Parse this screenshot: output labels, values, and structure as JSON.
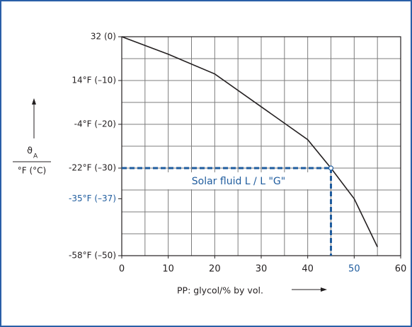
{
  "chart_data": {
    "type": "line",
    "x": [
      0,
      10,
      20,
      30,
      40,
      45,
      50,
      55
    ],
    "series": [
      {
        "color": "#231f20",
        "values": [
          0,
          -4,
          -8.5,
          -16,
          -23.5,
          -30,
          -37,
          -48
        ]
      }
    ],
    "xlim": [
      0,
      60
    ],
    "ylim": [
      -50,
      0
    ],
    "xticks": [
      0,
      10,
      20,
      30,
      40,
      {
        "value": 50,
        "label": "50",
        "color": "#1f5c9e"
      },
      60
    ],
    "yticks": [
      {
        "value": 0,
        "label": "32 (0)"
      },
      {
        "value": -10,
        "label": "14°F (–10)"
      },
      {
        "value": -20,
        "label": "-4°F (–20)"
      },
      {
        "value": -30,
        "label": "-22°F (–30)"
      },
      {
        "value": -37,
        "label": "-35°F (–37)",
        "color": "#1f5c9e"
      },
      {
        "value": -50,
        "label": "-58°F (–50)"
      }
    ],
    "xgrid": [
      5,
      10,
      15,
      20,
      25,
      30,
      35,
      40,
      45,
      50,
      55
    ],
    "ygrid": [
      -5,
      -10,
      -15,
      -20,
      -25,
      -30,
      -35,
      -40,
      -45
    ],
    "grid_color": "#7d7d7d",
    "x_label": "PP: glycol/% by vol.",
    "y_label": {
      "symbol": "ϑ",
      "subscript": "A",
      "unit": "°F (°C)"
    },
    "annotation": {
      "text": "Solar fluid L / L \"G\"",
      "x": 45,
      "y": -30,
      "color": "#1f5c9e"
    }
  }
}
